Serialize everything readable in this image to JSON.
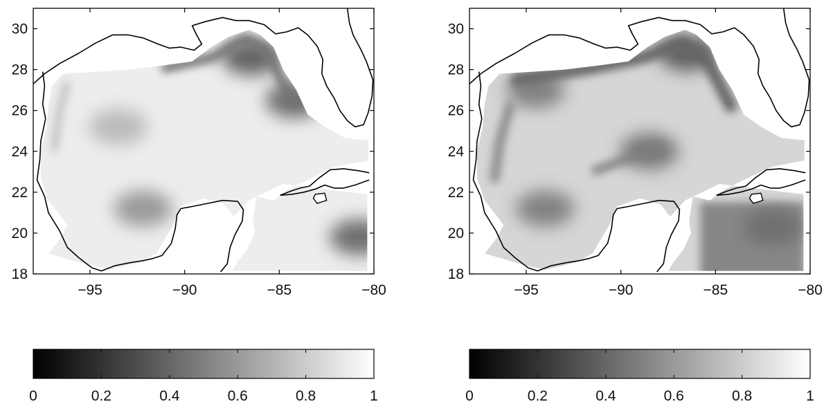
{
  "chart_data": [
    {
      "type": "heatmap",
      "title": "",
      "xlabel": "",
      "ylabel": "",
      "xlim": [
        -98,
        -80
      ],
      "ylim": [
        18,
        31
      ],
      "xticks": [
        -95,
        -90,
        -85,
        -80
      ],
      "yticks": [
        18,
        20,
        22,
        24,
        26,
        28,
        30
      ],
      "grid": false,
      "colormap": "grayscale",
      "field_pattern": "lighter interior (~0.8-0.95), dark band along northern shelf near -87 to -84 lon, darker patch in northwest Caribbean",
      "hotspots": [
        {
          "lon": -86.5,
          "lat": 28.6,
          "value": 0.3
        },
        {
          "lon": -84.2,
          "lat": 26.5,
          "value": 0.35
        },
        {
          "lon": -93.5,
          "lat": 25.2,
          "value": 0.7
        },
        {
          "lon": -80.8,
          "lat": 19.8,
          "value": 0.35
        },
        {
          "lon": -92.2,
          "lat": 21.2,
          "value": 0.55
        }
      ]
    },
    {
      "type": "heatmap",
      "title": "",
      "xlabel": "",
      "ylabel": "",
      "xlim": [
        -98,
        -80
      ],
      "ylim": [
        18,
        31
      ],
      "xticks": [
        -95,
        -90,
        -85,
        -80
      ],
      "yticks": [
        18,
        20,
        22,
        24,
        26,
        28,
        30
      ],
      "grid": false,
      "colormap": "grayscale",
      "field_pattern": "overall darker than left panel; dark bands along northern and western Gulf margins and large dark region in the Caribbean south of Cuba",
      "hotspots": [
        {
          "lon": -86.5,
          "lat": 28.8,
          "value": 0.3
        },
        {
          "lon": -94.5,
          "lat": 27.0,
          "value": 0.45
        },
        {
          "lon": -88.5,
          "lat": 24.0,
          "value": 0.4
        },
        {
          "lon": -82.0,
          "lat": 20.3,
          "value": 0.3
        },
        {
          "lon": -94.0,
          "lat": 21.2,
          "value": 0.45
        }
      ]
    }
  ],
  "colorbars": [
    {
      "ticks": [
        "0",
        "0.2",
        "0.4",
        "0.6",
        "0.8",
        "1"
      ]
    },
    {
      "ticks": [
        "0",
        "0.2",
        "0.4",
        "0.6",
        "0.8",
        "1"
      ]
    }
  ]
}
